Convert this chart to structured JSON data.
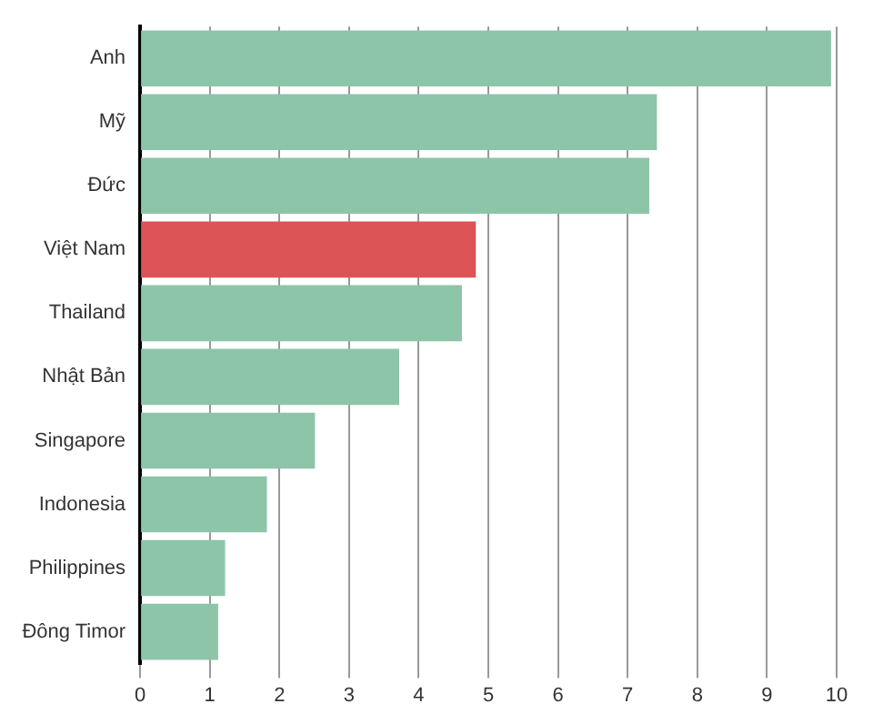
{
  "chart_data": {
    "type": "bar",
    "orientation": "horizontal",
    "categories": [
      "Anh",
      "Mỹ",
      "Đức",
      "Việt Nam",
      "Thailand",
      "Nhật Bản",
      "Singapore",
      "Indonesia",
      "Philippines",
      "Đông Timor"
    ],
    "values": [
      9.92,
      7.42,
      7.31,
      4.82,
      4.62,
      3.72,
      2.51,
      1.82,
      1.22,
      1.12
    ],
    "colors": [
      "#8dc5a8",
      "#8dc5a8",
      "#8dc5a8",
      "#dc5456",
      "#8dc5a8",
      "#8dc5a8",
      "#8dc5a8",
      "#8dc5a8",
      "#8dc5a8",
      "#8dc5a8"
    ],
    "xlim": [
      0,
      10
    ],
    "xticks": [
      0,
      1,
      2,
      3,
      4,
      5,
      6,
      7,
      8,
      9,
      10
    ],
    "grid": "x",
    "legend": false
  }
}
